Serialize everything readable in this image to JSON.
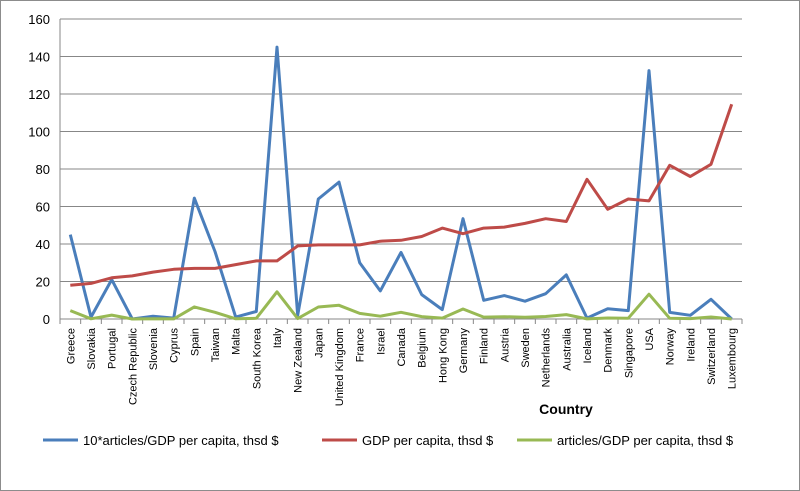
{
  "chart_data": {
    "type": "line",
    "xlabel": "Country",
    "ylabel": "",
    "ylim": [
      0,
      160
    ],
    "yticks": [
      0,
      20,
      40,
      60,
      80,
      100,
      120,
      140,
      160
    ],
    "grid": "horizontal",
    "legend": "bottom",
    "categories": [
      "Greece",
      "Slovakia",
      "Portugal",
      "Czech Republic",
      "Slovenia",
      "Cyprus",
      "Spain",
      "Taiwan",
      "Malta",
      "South Korea",
      "Italy",
      "New Zealand",
      "Japan",
      "United Kingdom",
      "France",
      "Israel",
      "Canada",
      "Belgium",
      "Hong Kong",
      "Germany",
      "Finland",
      "Austria",
      "Sweden",
      "Netherlands",
      "Australia",
      "Iceland",
      "Denmark",
      "Singapore",
      "USA",
      "Norway",
      "Ireland",
      "Switzerland",
      "Luxembourg"
    ],
    "series": [
      {
        "name": "10*articles/GDP per capita, thsd $",
        "color": "#4a7ebb",
        "values": [
          45,
          1,
          21,
          0,
          1.5,
          0.5,
          64.5,
          36,
          1,
          4,
          145,
          2,
          64,
          73,
          30,
          15,
          35.5,
          13,
          5,
          53.5,
          10,
          12.5,
          9.5,
          13.5,
          23.5,
          0.5,
          5.5,
          4.5,
          132.5,
          3.5,
          2,
          10.5,
          0
        ]
      },
      {
        "name": "GDP per capita, thsd $",
        "color": "#be4b48",
        "values": [
          18,
          19,
          22,
          23,
          25,
          26.5,
          27,
          27,
          29,
          31,
          31,
          39,
          39.5,
          39.5,
          39.5,
          41.5,
          42,
          44,
          48.5,
          45.5,
          48.5,
          49,
          51,
          53.5,
          52,
          74.5,
          58.5,
          64,
          63,
          82,
          76,
          82.5,
          114.5
        ]
      },
      {
        "name": "articles/GDP per capita, thsd $",
        "color": "#98b954",
        "values": [
          4.5,
          0.1,
          2.1,
          0,
          0.15,
          0.05,
          6.45,
          3.6,
          0.1,
          0.4,
          14.5,
          0.2,
          6.4,
          7.3,
          3,
          1.5,
          3.55,
          1.3,
          0.5,
          5.35,
          1,
          1.25,
          0.95,
          1.35,
          2.35,
          0.05,
          0.55,
          0.45,
          13.25,
          0.35,
          0.2,
          1.05,
          0
        ]
      }
    ]
  }
}
